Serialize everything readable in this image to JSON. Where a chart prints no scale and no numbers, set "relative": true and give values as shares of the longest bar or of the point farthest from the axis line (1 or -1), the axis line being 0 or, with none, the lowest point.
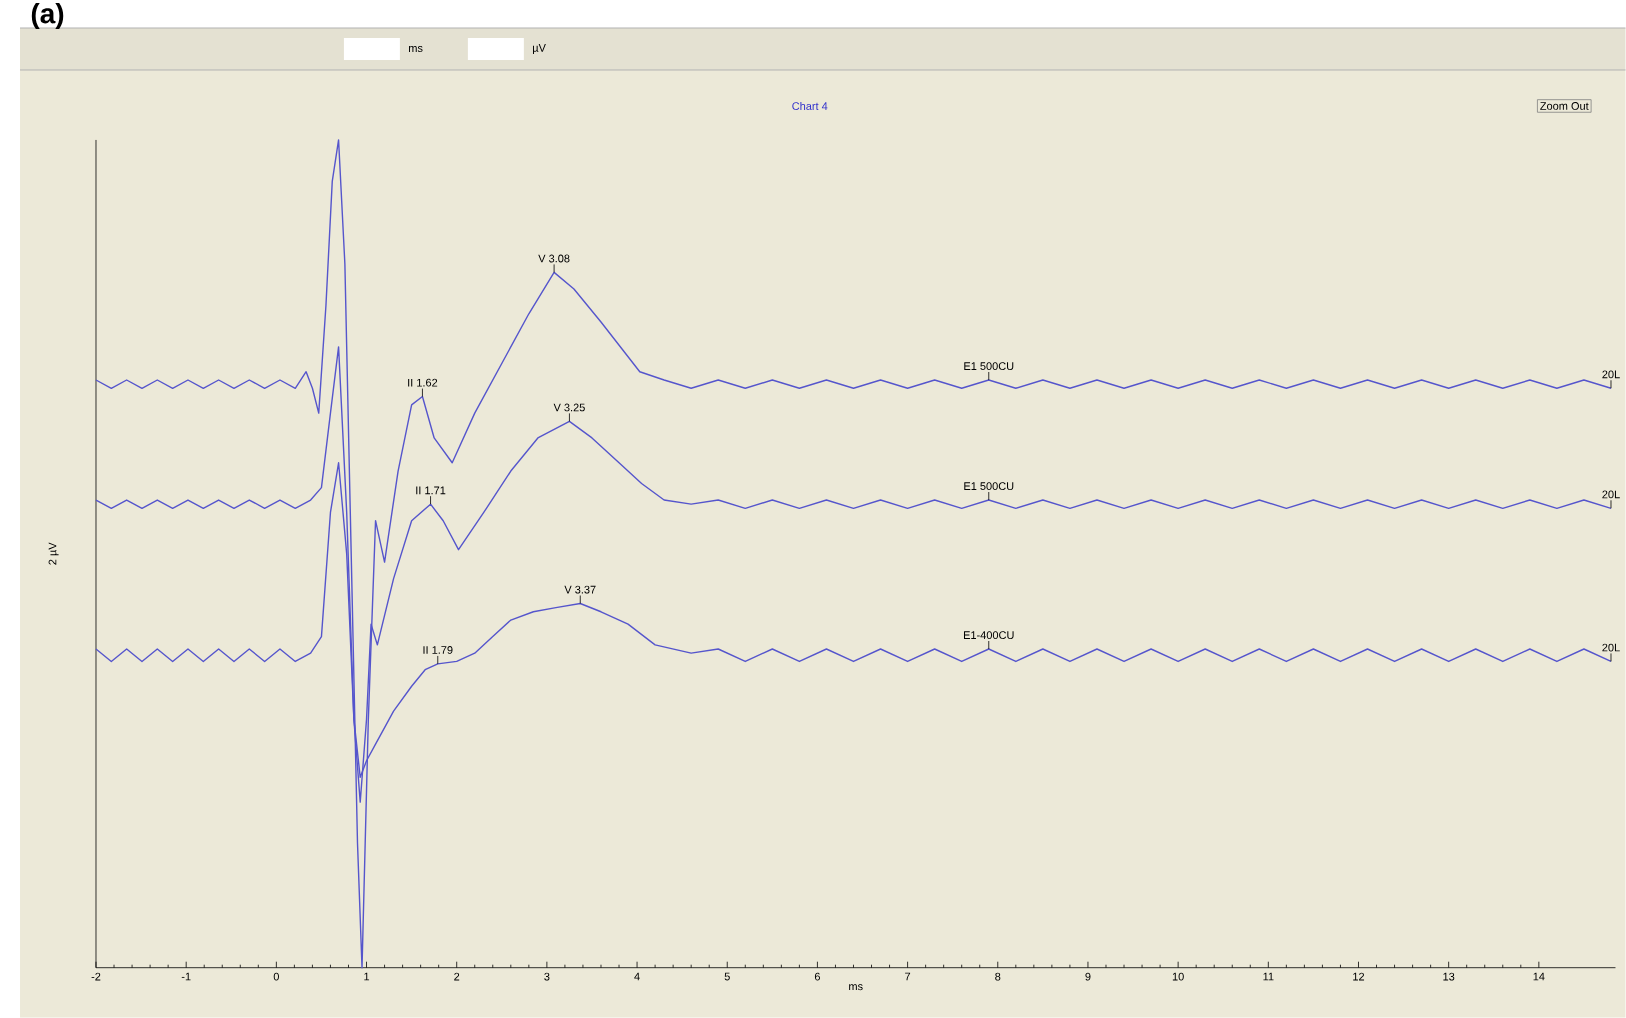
{
  "chart_data": {
    "type": "line",
    "title": "(a)",
    "subtitle": "Chart 4",
    "xlabel": "ms",
    "ylabel": "2 µV",
    "relative": true,
    "xlim": [
      -2,
      14.85
    ],
    "xticks": [
      -2,
      -1,
      0,
      1,
      2,
      3,
      4,
      5,
      6,
      7,
      8,
      9,
      10,
      11,
      12,
      13,
      14
    ],
    "series": [
      {
        "color": "#5555cc",
        "x": [
          -2,
          -1.83,
          -1.66,
          -1.49,
          -1.32,
          -1.15,
          -0.98,
          -0.81,
          -0.64,
          -0.47,
          -0.3,
          -0.13,
          0.04,
          0.21,
          0.33,
          0.4,
          0.47,
          0.55,
          0.62,
          0.69,
          0.76,
          0.83,
          0.9,
          0.95,
          1.02,
          1.1,
          1.2,
          1.35,
          1.5,
          1.62,
          1.75,
          1.95,
          2.2,
          2.5,
          2.8,
          3.08,
          3.3,
          3.6,
          4.03,
          4.3,
          4.6,
          4.9,
          5.2,
          5.5,
          5.8,
          6.1,
          6.4,
          6.7,
          7.0,
          7.3,
          7.6,
          7.9,
          8.2,
          8.5,
          8.8,
          9.1,
          9.4,
          9.7,
          10.0,
          10.3,
          10.6,
          10.9,
          11.2,
          11.5,
          11.8,
          12.1,
          12.4,
          12.7,
          13.0,
          13.3,
          13.6,
          13.9,
          14.2,
          14.5,
          14.8
        ],
        "values": [
          0.71,
          0.7,
          0.71,
          0.7,
          0.71,
          0.7,
          0.71,
          0.7,
          0.71,
          0.7,
          0.71,
          0.7,
          0.71,
          0.7,
          0.72,
          0.7,
          0.67,
          0.8,
          0.95,
          1.0,
          0.85,
          0.5,
          0.15,
          0.0,
          0.3,
          0.54,
          0.49,
          0.6,
          0.68,
          0.69,
          0.64,
          0.61,
          0.67,
          0.73,
          0.79,
          0.84,
          0.82,
          0.78,
          0.72,
          0.71,
          0.7,
          0.71,
          0.7,
          0.71,
          0.7,
          0.71,
          0.7,
          0.71,
          0.7,
          0.71,
          0.7,
          0.71,
          0.7,
          0.71,
          0.7,
          0.71,
          0.7,
          0.71,
          0.7,
          0.71,
          0.7,
          0.71,
          0.7,
          0.71,
          0.7,
          0.71,
          0.7,
          0.71,
          0.7,
          0.71,
          0.7,
          0.71,
          0.7,
          0.71,
          0.7
        ]
      },
      {
        "color": "#5555cc",
        "x": [
          -2,
          -1.83,
          -1.66,
          -1.49,
          -1.32,
          -1.15,
          -0.98,
          -0.81,
          -0.64,
          -0.47,
          -0.3,
          -0.13,
          0.04,
          0.21,
          0.38,
          0.5,
          0.6,
          0.69,
          0.78,
          0.86,
          0.93,
          1.0,
          1.05,
          1.12,
          1.3,
          1.5,
          1.71,
          1.85,
          2.02,
          2.3,
          2.6,
          2.9,
          3.25,
          3.5,
          3.8,
          4.05,
          4.3,
          4.6,
          4.9,
          5.2,
          5.5,
          5.8,
          6.1,
          6.4,
          6.7,
          7.0,
          7.3,
          7.6,
          7.9,
          8.2,
          8.5,
          8.8,
          9.1,
          9.4,
          9.7,
          10.0,
          10.3,
          10.6,
          10.9,
          11.2,
          11.5,
          11.8,
          12.1,
          12.4,
          12.7,
          13.0,
          13.3,
          13.6,
          13.9,
          14.2,
          14.5,
          14.8
        ],
        "values": [
          0.565,
          0.555,
          0.565,
          0.555,
          0.565,
          0.555,
          0.565,
          0.555,
          0.565,
          0.555,
          0.565,
          0.555,
          0.565,
          0.555,
          0.565,
          0.58,
          0.67,
          0.75,
          0.55,
          0.3,
          0.2,
          0.3,
          0.415,
          0.39,
          0.47,
          0.54,
          0.56,
          0.54,
          0.505,
          0.55,
          0.6,
          0.64,
          0.66,
          0.64,
          0.61,
          0.585,
          0.565,
          0.56,
          0.565,
          0.555,
          0.565,
          0.555,
          0.565,
          0.555,
          0.565,
          0.555,
          0.565,
          0.555,
          0.565,
          0.555,
          0.565,
          0.555,
          0.565,
          0.555,
          0.565,
          0.555,
          0.565,
          0.555,
          0.565,
          0.555,
          0.565,
          0.555,
          0.565,
          0.555,
          0.565,
          0.555,
          0.565,
          0.555,
          0.565,
          0.555,
          0.565,
          0.555
        ]
      },
      {
        "color": "#5555cc",
        "x": [
          -2,
          -1.83,
          -1.66,
          -1.49,
          -1.32,
          -1.15,
          -0.98,
          -0.81,
          -0.64,
          -0.47,
          -0.3,
          -0.13,
          0.04,
          0.21,
          0.38,
          0.5,
          0.6,
          0.69,
          0.78,
          0.86,
          0.93,
          1.0,
          1.1,
          1.3,
          1.5,
          1.65,
          1.79,
          2.0,
          2.2,
          2.4,
          2.6,
          2.85,
          3.1,
          3.37,
          3.6,
          3.9,
          4.2,
          4.6,
          4.9,
          5.2,
          5.5,
          5.8,
          6.1,
          6.4,
          6.7,
          7.0,
          7.3,
          7.6,
          7.9,
          8.2,
          8.5,
          8.8,
          9.1,
          9.4,
          9.7,
          10.0,
          10.3,
          10.6,
          10.9,
          11.2,
          11.5,
          11.8,
          12.1,
          12.4,
          12.7,
          13.0,
          13.3,
          13.6,
          13.9,
          14.2,
          14.5,
          14.8
        ],
        "values": [
          0.385,
          0.37,
          0.385,
          0.37,
          0.385,
          0.37,
          0.385,
          0.37,
          0.385,
          0.37,
          0.385,
          0.37,
          0.385,
          0.37,
          0.38,
          0.4,
          0.55,
          0.61,
          0.5,
          0.3,
          0.23,
          0.25,
          0.27,
          0.31,
          0.34,
          0.36,
          0.367,
          0.37,
          0.38,
          0.4,
          0.42,
          0.43,
          0.435,
          0.44,
          0.43,
          0.415,
          0.39,
          0.38,
          0.385,
          0.37,
          0.385,
          0.37,
          0.385,
          0.37,
          0.385,
          0.37,
          0.385,
          0.37,
          0.385,
          0.37,
          0.385,
          0.37,
          0.385,
          0.37,
          0.385,
          0.37,
          0.385,
          0.37,
          0.385,
          0.37,
          0.385,
          0.37,
          0.385,
          0.37,
          0.385,
          0.37,
          0.385,
          0.37,
          0.385,
          0.37,
          0.385,
          0.37
        ]
      }
    ],
    "annotations": [
      {
        "text": "V 3.08",
        "x": 3.08,
        "y": 0.84
      },
      {
        "text": "II 1.62",
        "x": 1.62,
        "y": 0.69
      },
      {
        "text": "E1 500CU",
        "x": 7.9,
        "y": 0.71
      },
      {
        "text": "20L",
        "x": 14.8,
        "y": 0.7
      },
      {
        "text": "V 3.25",
        "x": 3.25,
        "y": 0.66
      },
      {
        "text": "II 1.71",
        "x": 1.71,
        "y": 0.56
      },
      {
        "text": "E1 500CU",
        "x": 7.9,
        "y": 0.565
      },
      {
        "text": "20L",
        "x": 14.8,
        "y": 0.555
      },
      {
        "text": "V 3.37",
        "x": 3.37,
        "y": 0.44
      },
      {
        "text": "II 1.79",
        "x": 1.79,
        "y": 0.367
      },
      {
        "text": "E1-400CU",
        "x": 7.9,
        "y": 0.385
      },
      {
        "text": "20L",
        "x": 14.8,
        "y": 0.37
      },
      "ms",
      "µV",
      "Zoom Out"
    ]
  }
}
